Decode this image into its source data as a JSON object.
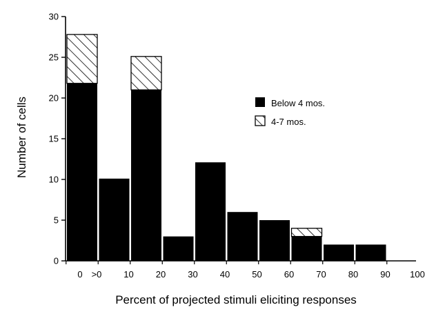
{
  "chart_data": {
    "type": "bar",
    "stacked": true,
    "title": "",
    "xlabel": "Percent of projected stimuli eliciting responses",
    "ylabel": "Number of cells",
    "ylim": [
      0,
      30
    ],
    "yticks": [
      "0",
      "5",
      "10",
      "15",
      "20",
      "25",
      "30"
    ],
    "xticks": [
      "0",
      ">0",
      "10",
      "20",
      "30",
      "40",
      "50",
      "60",
      "70",
      "80",
      "90",
      "100"
    ],
    "categories": [
      "0",
      ">0-10",
      "10-20",
      "20-30",
      "30-40",
      "40-50",
      "50-60",
      "60-70",
      "70-80",
      "80-90"
    ],
    "series": [
      {
        "name": "Below 4 mos.",
        "pattern": "solid",
        "color": "#000000",
        "values": [
          21.8,
          10.1,
          21.0,
          3.0,
          12.1,
          6.0,
          5.0,
          3.0,
          2.0,
          2.0
        ]
      },
      {
        "name": "4-7 mos.",
        "pattern": "hatched",
        "color": "#000000",
        "values": [
          6.0,
          0,
          4.1,
          0,
          0,
          0,
          0,
          1.0,
          0,
          0
        ]
      }
    ],
    "legend_position": "right-center",
    "grid": false
  }
}
